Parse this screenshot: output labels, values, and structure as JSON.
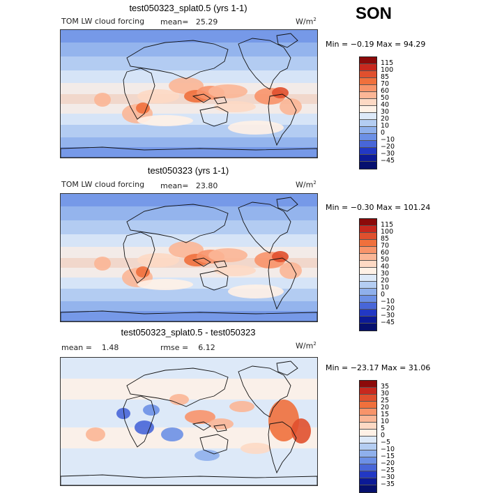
{
  "season": "SON",
  "chart_data": [
    {
      "type": "heatmap",
      "title": "test050323_splat0.5 (yrs 1-1)",
      "variable": "TOM LW cloud forcing",
      "stat_label": "mean=",
      "stat_value": "25.29",
      "units": "W/m",
      "units_exp": "2",
      "min_max_text": "Min = −0.19 Max = 94.29",
      "min": -0.19,
      "max": 94.29,
      "colorbar_levels": [
        "115",
        "100",
        "85",
        "70",
        "60",
        "50",
        "40",
        "30",
        "20",
        "10",
        "0",
        "−10",
        "−20",
        "−30",
        "−45"
      ],
      "colorbar_colors": [
        "#8c0a0a",
        "#c8281e",
        "#e0502e",
        "#f0703c",
        "#f8946a",
        "#fbb696",
        "#fdd9c4",
        "#fff1e6",
        "#dde9f8",
        "#b4cdf2",
        "#8fb0ec",
        "#6c90e6",
        "#4866d8",
        "#2238c4",
        "#0c1a96",
        "#06106e"
      ],
      "background": "#b0c8f0"
    },
    {
      "type": "heatmap",
      "title": "test050323 (yrs 1-1)",
      "variable": "TOM LW cloud forcing",
      "stat_label": "mean=",
      "stat_value": "23.80",
      "units": "W/m",
      "units_exp": "2",
      "min_max_text": "Min = −0.30 Max = 101.24",
      "min": -0.3,
      "max": 101.24,
      "colorbar_levels": [
        "115",
        "100",
        "85",
        "70",
        "60",
        "50",
        "40",
        "30",
        "20",
        "10",
        "0",
        "−10",
        "−20",
        "−30",
        "−45"
      ],
      "colorbar_colors": [
        "#8c0a0a",
        "#c8281e",
        "#e0502e",
        "#f0703c",
        "#f8946a",
        "#fbb696",
        "#fdd9c4",
        "#fff1e6",
        "#dde9f8",
        "#b4cdf2",
        "#8fb0ec",
        "#6c90e6",
        "#4866d8",
        "#2238c4",
        "#0c1a96",
        "#06106e"
      ],
      "background": "#b0c8f0"
    },
    {
      "type": "heatmap",
      "title": "test050323_splat0.5 - test050323",
      "stat1_label": "mean =",
      "stat1_value": "1.48",
      "stat2_label": "rmse =",
      "stat2_value": "6.12",
      "units": "W/m",
      "units_exp": "2",
      "min_max_text": "Min = −23.17 Max = 31.06",
      "min": -23.17,
      "max": 31.06,
      "colorbar_levels": [
        "35",
        "30",
        "25",
        "20",
        "15",
        "10",
        "5",
        "0",
        "−5",
        "−10",
        "−15",
        "−20",
        "−25",
        "−30",
        "−35"
      ],
      "colorbar_colors": [
        "#8c0a0a",
        "#c8281e",
        "#e0502e",
        "#f0703c",
        "#f8946a",
        "#fbb696",
        "#fdd9c4",
        "#fff1e6",
        "#dde9f8",
        "#b4cdf2",
        "#8fb0ec",
        "#6c90e6",
        "#4866d8",
        "#2238c4",
        "#0c1a96",
        "#06106e"
      ],
      "background": "#dde9f8"
    }
  ]
}
